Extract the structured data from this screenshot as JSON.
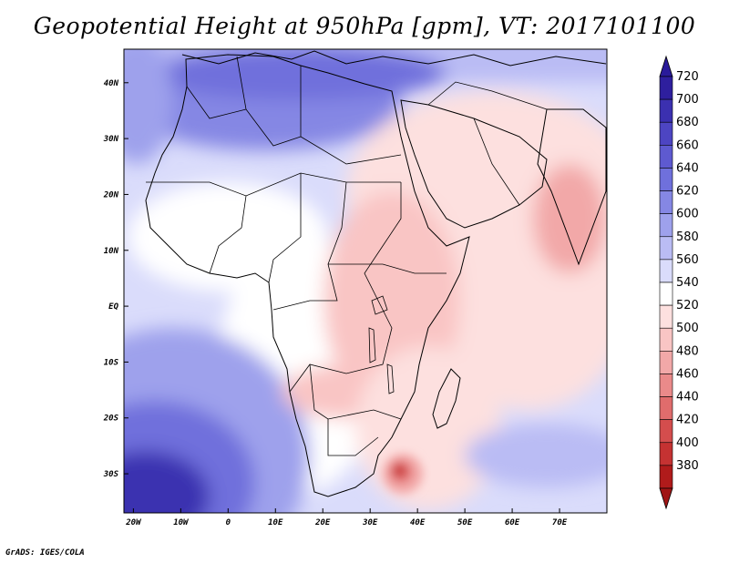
{
  "title": "Geopotential Height at 950hPa [gpm], VT: 2017101100",
  "footer": "GrADS: IGES/COLA",
  "map": {
    "lon_range": [
      -22,
      80
    ],
    "lat_range": [
      -37,
      46
    ],
    "x_ticks": [
      "20W",
      "10W",
      "0",
      "10E",
      "20E",
      "30E",
      "40E",
      "50E",
      "60E",
      "70E"
    ],
    "x_tick_values": [
      -20,
      -10,
      0,
      10,
      20,
      30,
      40,
      50,
      60,
      70
    ],
    "y_ticks": [
      "40N",
      "30N",
      "20N",
      "10N",
      "EQ",
      "10S",
      "20S",
      "30S"
    ],
    "y_tick_values": [
      40,
      30,
      20,
      10,
      0,
      -10,
      -20,
      -30
    ]
  },
  "colorbar": {
    "labels": [
      "720",
      "700",
      "680",
      "660",
      "640",
      "620",
      "600",
      "580",
      "560",
      "540",
      "520",
      "500",
      "480",
      "460",
      "440",
      "420",
      "400",
      "380"
    ],
    "top_color": "#2a1b9a",
    "bottom_color": "#a01515",
    "colors": [
      "#2e1f9e",
      "#3b30b0",
      "#4d45c2",
      "#5e5ad0",
      "#6f70dc",
      "#8587e4",
      "#9ea1ec",
      "#babcf4",
      "#dadcfb",
      "#ffffff",
      "#fde0df",
      "#f9c5c4",
      "#f2a8a8",
      "#ea8a8a",
      "#e06c6c",
      "#d44d4d",
      "#c53232",
      "#b01b1b"
    ]
  },
  "field": {
    "description_colors": {
      "ocean_sw": "#3b30b0",
      "sahara": "#6f70dc",
      "arabia": "#fde0df",
      "india": "#f2a8a8",
      "low_center": "#c53232"
    }
  }
}
